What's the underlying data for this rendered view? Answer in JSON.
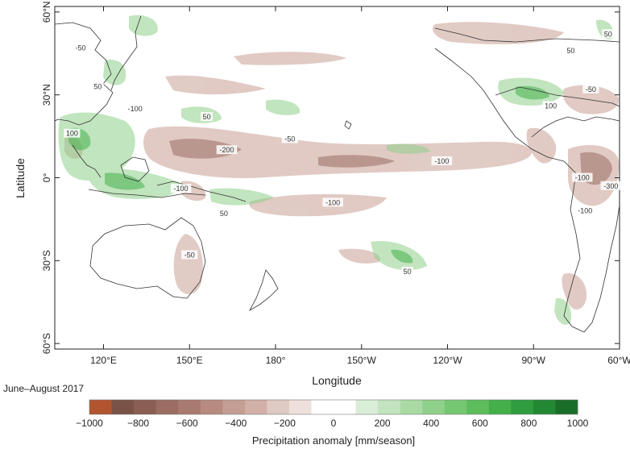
{
  "map": {
    "xlabel": "Longitude",
    "ylabel": "Latitude",
    "x_ticks": [
      {
        "lon": 120,
        "label": "120°E"
      },
      {
        "lon": 150,
        "label": "150°E"
      },
      {
        "lon": 180,
        "label": "180°"
      },
      {
        "lon": 210,
        "label": "150°W"
      },
      {
        "lon": 240,
        "label": "120°W"
      },
      {
        "lon": 270,
        "label": "90°W"
      },
      {
        "lon": 300,
        "label": "60°W"
      }
    ],
    "y_ticks": [
      {
        "lat": 60,
        "label": "60°N"
      },
      {
        "lat": 30,
        "label": "30°N"
      },
      {
        "lat": 0,
        "label": "0°"
      },
      {
        "lat": -30,
        "label": "30°S"
      },
      {
        "lat": -60,
        "label": "60°S"
      }
    ],
    "lon_range": [
      103,
      300
    ],
    "lat_range": [
      -62,
      62
    ],
    "period": "June–August 2017",
    "contour_labels": [
      {
        "lon": 112,
        "lat": 47,
        "text": "-50"
      },
      {
        "lon": 118,
        "lat": 33,
        "text": "50"
      },
      {
        "lon": 109,
        "lat": 16,
        "text": "100"
      },
      {
        "lon": 131,
        "lat": 25,
        "text": "-100"
      },
      {
        "lon": 156,
        "lat": 22,
        "text": "50"
      },
      {
        "lon": 163,
        "lat": 10,
        "text": "-200"
      },
      {
        "lon": 185,
        "lat": 14,
        "text": "-50"
      },
      {
        "lon": 147,
        "lat": -4,
        "text": "-100"
      },
      {
        "lon": 162,
        "lat": -13,
        "text": "50"
      },
      {
        "lon": 200,
        "lat": -9,
        "text": "-100"
      },
      {
        "lon": 238,
        "lat": 6,
        "text": "-100"
      },
      {
        "lon": 150,
        "lat": -28,
        "text": "-50"
      },
      {
        "lon": 226,
        "lat": -34,
        "text": "50"
      },
      {
        "lon": 283,
        "lat": 46,
        "text": "50"
      },
      {
        "lon": 296,
        "lat": 52,
        "text": "50"
      },
      {
        "lon": 290,
        "lat": 32,
        "text": "-50"
      },
      {
        "lon": 276,
        "lat": 26,
        "text": "100"
      },
      {
        "lon": 287,
        "lat": 0,
        "text": "-100"
      },
      {
        "lon": 297,
        "lat": -3,
        "text": "-300"
      },
      {
        "lon": 288,
        "lat": -12,
        "text": "-100"
      }
    ]
  },
  "colorbar": {
    "title": "Precipitation anomaly [mm/season]",
    "ticks": [
      "-1000",
      "-800",
      "-600",
      "-400",
      "-200",
      "0",
      "200",
      "400",
      "600",
      "800",
      "1000"
    ],
    "colors": [
      "#b2552f",
      "#7a5246",
      "#8a5e52",
      "#9b6d62",
      "#a97a70",
      "#b78b80",
      "#c49d93",
      "#d1b0a7",
      "#decac2",
      "#eee0da",
      "#ffffff",
      "#ffffff",
      "#d9eed7",
      "#c2e4bf",
      "#a9daa4",
      "#8fd08a",
      "#76c772",
      "#5dbd5c",
      "#44b04b",
      "#2f9c3f",
      "#238834",
      "#1a6e28"
    ]
  }
}
